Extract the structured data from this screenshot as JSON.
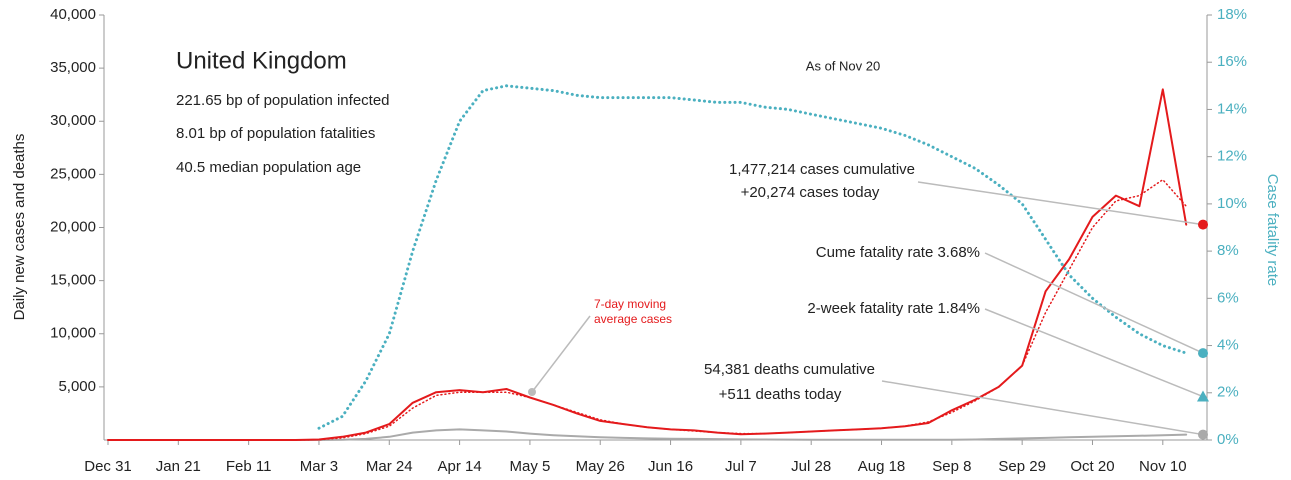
{
  "chart_data": {
    "type": "line",
    "title": "United Kingdom",
    "subtitle": "As of Nov 20",
    "stats": [
      "221.65 bp of population infected",
      "8.01 bp of population fatalities",
      "40.5 median population age"
    ],
    "ylabel": "Daily new cases and deaths",
    "y2label": "Case fatality rate",
    "categories": [
      "Dec 31",
      null,
      null,
      "Jan 21",
      null,
      null,
      "Feb 11",
      null,
      null,
      "Mar 3",
      null,
      null,
      "Mar 24",
      null,
      null,
      "Apr 14",
      null,
      null,
      "May 5",
      null,
      null,
      "May 26",
      null,
      null,
      "Jun 16",
      null,
      null,
      "Jul 7",
      null,
      null,
      "Jul 28",
      null,
      null,
      "Aug 18",
      null,
      null,
      "Sep 8",
      null,
      null,
      "Sep 29",
      null,
      null,
      "Oct 20",
      null,
      null,
      "Nov 10",
      null
    ],
    "series": [
      {
        "color": "#e41a1c",
        "style": "solid",
        "axis": "y",
        "values": [
          0,
          0,
          0,
          0,
          0,
          0,
          0,
          0,
          0,
          50,
          300,
          700,
          1500,
          3500,
          4500,
          4700,
          4500,
          4800,
          4000,
          3300,
          2500,
          1800,
          1500,
          1200,
          1000,
          900,
          700,
          550,
          600,
          700,
          800,
          900,
          1000,
          1100,
          1300,
          1600,
          2800,
          3800,
          5000,
          7000,
          14000,
          17000,
          21000,
          23000,
          22000,
          33000,
          20274
        ]
      },
      {
        "name": "7-day moving average cases",
        "color": "#e41a1c",
        "style": "dotted",
        "axis": "y",
        "values": [
          0,
          0,
          0,
          0,
          0,
          0,
          0,
          0,
          0,
          30,
          200,
          600,
          1300,
          3000,
          4200,
          4500,
          4500,
          4500,
          4000,
          3300,
          2600,
          1900,
          1500,
          1200,
          1000,
          850,
          700,
          600,
          600,
          700,
          800,
          900,
          1000,
          1100,
          1300,
          1700,
          2600,
          3700,
          5000,
          7000,
          12000,
          16000,
          20000,
          22500,
          23000,
          24500,
          22000
        ]
      },
      {
        "color": "#aaaaaa",
        "style": "solid",
        "axis": "y",
        "values": [
          0,
          0,
          0,
          0,
          0,
          0,
          0,
          0,
          0,
          0,
          20,
          100,
          300,
          700,
          900,
          1000,
          900,
          800,
          600,
          450,
          350,
          250,
          200,
          150,
          120,
          100,
          80,
          60,
          50,
          40,
          30,
          20,
          20,
          20,
          20,
          20,
          30,
          50,
          100,
          150,
          200,
          250,
          300,
          350,
          400,
          450,
          511
        ]
      },
      {
        "color": "#4bb0c0",
        "style": "dotted",
        "axis": "y2",
        "values": [
          null,
          null,
          null,
          null,
          null,
          null,
          null,
          null,
          null,
          0.5,
          1,
          2.5,
          4.5,
          8,
          11,
          13.5,
          14.8,
          15,
          14.9,
          14.8,
          14.6,
          14.5,
          14.5,
          14.5,
          14.5,
          14.4,
          14.3,
          14.3,
          14.1,
          14,
          13.8,
          13.6,
          13.4,
          13.2,
          12.9,
          12.5,
          12,
          11.5,
          10.8,
          10,
          8.5,
          7,
          6,
          5.2,
          4.5,
          4,
          3.68
        ]
      }
    ],
    "fatality_rate_2week": 1.84,
    "annotations": [
      "1,477,214 cases cumulative",
      "+20,274 cases today",
      "Cume fatality rate 3.68%",
      "2-week fatality rate 1.84%",
      "54,381 deaths cumulative",
      "+511 deaths today"
    ],
    "ylim": [
      0,
      40000
    ],
    "yticks": [
      {
        "value": 5000,
        "label": "5,000"
      },
      {
        "value": 10000,
        "label": "10,000"
      },
      {
        "value": 15000,
        "label": "15,000"
      },
      {
        "value": 20000,
        "label": "20,000"
      },
      {
        "value": 25000,
        "label": "25,000"
      },
      {
        "value": 30000,
        "label": "30,000"
      },
      {
        "value": 35000,
        "label": "35,000"
      },
      {
        "value": 40000,
        "label": "40,000"
      }
    ],
    "y2lim": [
      0,
      18
    ],
    "y2ticks": [
      {
        "value": 0,
        "label": "0%"
      },
      {
        "value": 2,
        "label": "2%"
      },
      {
        "value": 4,
        "label": "4%"
      },
      {
        "value": 6,
        "label": "6%"
      },
      {
        "value": 8,
        "label": "8%"
      },
      {
        "value": 10,
        "label": "10%"
      },
      {
        "value": 12,
        "label": "12%"
      },
      {
        "value": 14,
        "label": "14%"
      },
      {
        "value": 16,
        "label": "16%"
      },
      {
        "value": 18,
        "label": "18%"
      }
    ],
    "grid": false
  }
}
